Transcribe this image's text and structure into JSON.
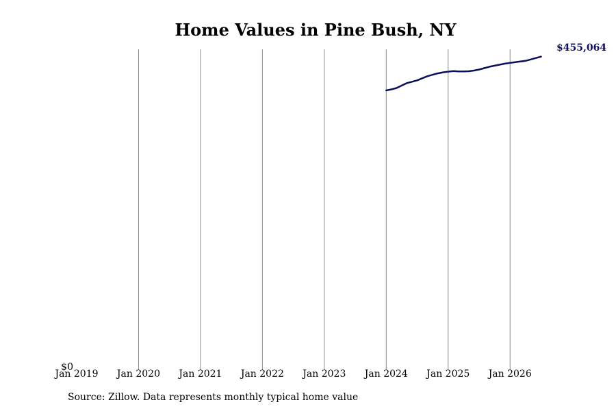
{
  "colors": {
    "line": "#0d0d5e",
    "grid": "#8c8c8c"
  },
  "chart_data": {
    "type": "line",
    "title": "Home Values in Pine Bush, NY",
    "xlabel": "",
    "ylabel": "",
    "x_range": [
      "2019-01",
      "2026-08"
    ],
    "ylim": [
      0,
      460000
    ],
    "x_ticks": [
      "Jan 2019",
      "Jan 2020",
      "Jan 2021",
      "Jan 2022",
      "Jan 2023",
      "Jan 2024",
      "Jan 2025",
      "Jan 2026"
    ],
    "y_tick_labels": [
      "$0"
    ],
    "grid": "vertical",
    "end_label": "$455,064",
    "series": [
      {
        "x": [
          "2024-01",
          "2024-02",
          "2024-03",
          "2024-04",
          "2024-05",
          "2024-06",
          "2024-07",
          "2024-08",
          "2024-09",
          "2024-10",
          "2024-11",
          "2024-12",
          "2025-01",
          "2025-02",
          "2025-03",
          "2025-04",
          "2025-05",
          "2025-06",
          "2025-07",
          "2025-08",
          "2025-09",
          "2025-10",
          "2025-11",
          "2025-12",
          "2026-01",
          "2026-02",
          "2026-03",
          "2026-04",
          "2026-05",
          "2026-06",
          "2026-07"
        ],
        "values": [
          401000,
          402500,
          404500,
          408000,
          411500,
          413500,
          415500,
          418500,
          421500,
          423500,
          425500,
          427000,
          428000,
          428700,
          428300,
          428300,
          428500,
          429500,
          431000,
          433000,
          435000,
          436500,
          438000,
          439500,
          440500,
          441500,
          442500,
          443500,
          445500,
          447500,
          449500
        ]
      }
    ],
    "source": "Source: Zillow. Data represents monthly typical home value"
  }
}
